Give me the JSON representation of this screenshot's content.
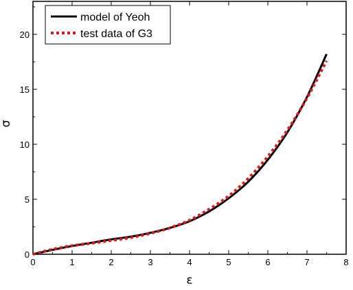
{
  "chart_data": {
    "type": "line",
    "xlabel": "ε",
    "ylabel": "σ",
    "xlim": [
      0,
      8
    ],
    "ylim": [
      0,
      23
    ],
    "x_ticks": [
      0,
      1,
      2,
      3,
      4,
      5,
      6,
      7,
      8
    ],
    "y_ticks": [
      0,
      5,
      10,
      15,
      20
    ],
    "grid": false,
    "legend_position": "top-left",
    "series": [
      {
        "name": "model of Yeoh",
        "color": "#000000",
        "style": "solid",
        "x": [
          0,
          0.5,
          1,
          1.5,
          2,
          2.5,
          3,
          3.5,
          4,
          4.5,
          5,
          5.5,
          6,
          6.5,
          7,
          7.5
        ],
        "y": [
          0,
          0.4,
          0.75,
          1.05,
          1.35,
          1.6,
          1.95,
          2.4,
          3.0,
          3.9,
          5.1,
          6.6,
          8.6,
          11.1,
          14.3,
          18.2
        ]
      },
      {
        "name": "test data of G3",
        "color": "#e01818",
        "style": "dotted",
        "x": [
          0,
          0.5,
          1,
          1.5,
          2,
          2.5,
          3,
          3.5,
          4,
          4.5,
          5,
          5.5,
          6,
          6.5,
          7,
          7.5
        ],
        "y": [
          0,
          0.45,
          0.78,
          1.0,
          1.25,
          1.52,
          1.9,
          2.4,
          3.1,
          4.1,
          5.3,
          6.9,
          8.9,
          11.3,
          14.2,
          17.6
        ]
      }
    ]
  }
}
